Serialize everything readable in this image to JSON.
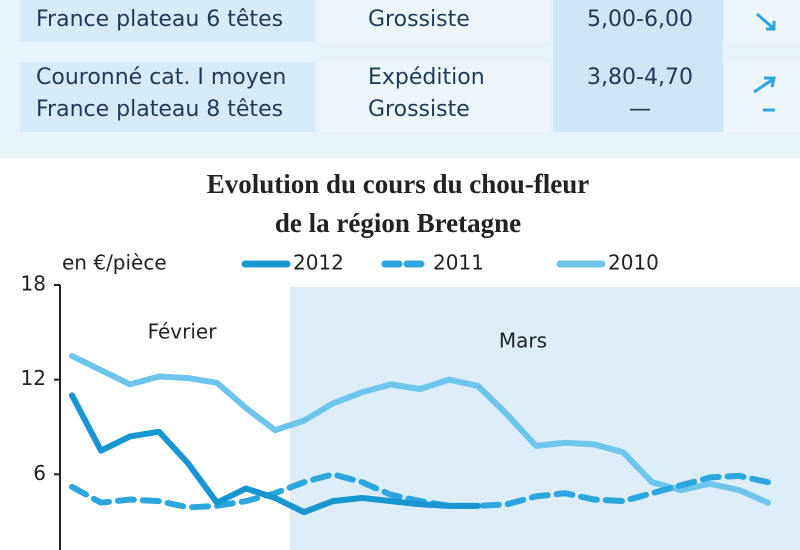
{
  "table": {
    "rows": [
      [
        "France plateau 6 têtes",
        "Grossiste",
        "5,00-6,00"
      ],
      [
        "Couronné cat. I moyen",
        "Expédition",
        "3,80-4,70"
      ],
      [
        "France plateau 8 têtes",
        "Grossiste",
        "—"
      ]
    ]
  },
  "chart_data": {
    "type": "line",
    "title": [
      "Evolution du cours du chou-fleur",
      "de la région Bretagne"
    ],
    "y_label": "en €/pièce",
    "periods": [
      "Février",
      "Mars"
    ],
    "categories": [
      null,
      null,
      null,
      null,
      null,
      null,
      null,
      null,
      null,
      null,
      null,
      null,
      null,
      null,
      null,
      null,
      null,
      null,
      null,
      null,
      null,
      null,
      null,
      null,
      null
    ],
    "ylim": [
      1.2,
      18
    ],
    "yticks": [
      6,
      12,
      18
    ],
    "series": [
      {
        "name": "2012",
        "color": "#1796d2",
        "dash": false,
        "values": [
          11,
          7.5,
          8.4,
          8.7,
          6.7,
          4.2,
          5.1,
          4.5,
          3.6,
          4.3,
          4.5,
          4.3,
          4.1,
          4.0,
          4.0,
          null,
          null,
          null,
          null,
          null,
          null,
          null,
          null,
          null,
          null
        ]
      },
      {
        "name": "2011",
        "color": "#2ba6de",
        "dash": true,
        "values": [
          5.2,
          4.2,
          4.4,
          4.3,
          3.9,
          4.0,
          4.3,
          4.8,
          5.5,
          6.0,
          5.5,
          4.7,
          4.3,
          4.0,
          4.0,
          4.1,
          4.6,
          4.8,
          4.4,
          4.3,
          4.8,
          5.3,
          5.8,
          5.9,
          5.5
        ]
      },
      {
        "name": "2010",
        "color": "#6ec5ec",
        "dash": false,
        "values": [
          13.5,
          12.6,
          11.7,
          12.2,
          12.1,
          11.8,
          10.2,
          8.8,
          9.4,
          10.5,
          11.2,
          11.7,
          11.4,
          12.0,
          11.6,
          9.8,
          7.8,
          8.0,
          7.9,
          7.4,
          5.5,
          5.0,
          5.4,
          5.0,
          4.2
        ]
      }
    ]
  }
}
